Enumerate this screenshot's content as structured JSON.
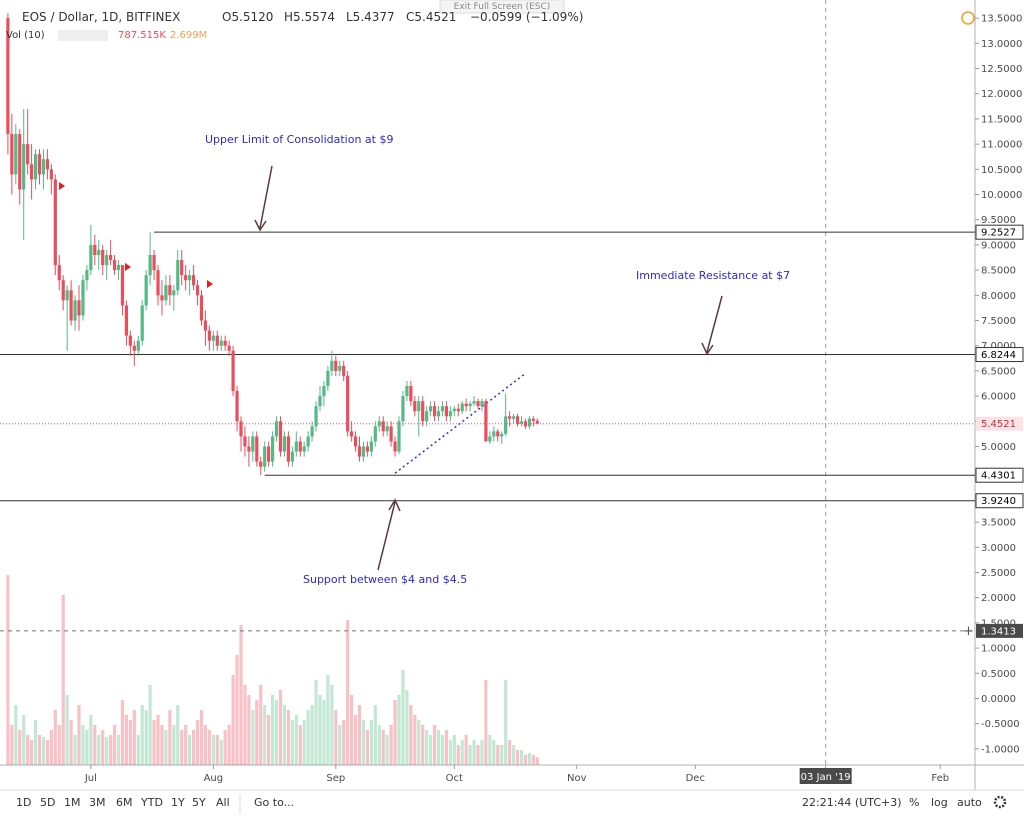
{
  "header": {
    "title": "EOS / Dollar, 1D, BITFINEX",
    "open": "O5.5120",
    "high": "H5.5574",
    "low": "L5.4377",
    "close": "C5.4521",
    "change": "−0.0599 (−1.09%)",
    "volume_title": "Vol (10)",
    "volume_value": "787.515K",
    "volume_ma": "2.699M",
    "exit_button": "Exit Full Screen (ESC)"
  },
  "toolbar": {
    "ranges": [
      "1D",
      "5D",
      "1M",
      "3M",
      "6M",
      "YTD",
      "1Y",
      "5Y",
      "All"
    ],
    "goto": "Go to...",
    "clock": "22:21:44 (UTC+3)",
    "percent": "%",
    "log": "log",
    "auto": "auto"
  },
  "chart_data": {
    "type": "candlestick",
    "xlim": [
      -2,
      244.8
    ],
    "xticks": [
      {
        "value": 21,
        "label": "Jul"
      },
      {
        "value": 52,
        "label": "Aug"
      },
      {
        "value": 83,
        "label": "Sep"
      },
      {
        "value": 113,
        "label": "Oct"
      },
      {
        "value": 144,
        "label": "Nov"
      },
      {
        "value": 174,
        "label": "Dec"
      },
      {
        "value": 207,
        "label": "03 Jan '19"
      },
      {
        "value": 236,
        "label": "Feb"
      }
    ],
    "ylim": [
      -1.32,
      13.86
    ],
    "yticks": [
      {
        "value": 13.5,
        "label": "13.5000"
      },
      {
        "value": 13,
        "label": "13.0000"
      },
      {
        "value": 12.5,
        "label": "12.5000"
      },
      {
        "value": 12,
        "label": "12.0000"
      },
      {
        "value": 11.5,
        "label": "11.5000"
      },
      {
        "value": 11,
        "label": "11.0000"
      },
      {
        "value": 10.5,
        "label": "10.5000"
      },
      {
        "value": 10,
        "label": "10.0000"
      },
      {
        "value": 9.5,
        "label": "9.5000"
      },
      {
        "value": 9,
        "label": "9.0000"
      },
      {
        "value": 8.5,
        "label": "8.5000"
      },
      {
        "value": 8,
        "label": "8.0000"
      },
      {
        "value": 7.5,
        "label": "7.5000"
      },
      {
        "value": 7,
        "label": "7.0000"
      },
      {
        "value": 6.5,
        "label": "6.5000"
      },
      {
        "value": 6,
        "label": "6.0000"
      },
      {
        "value": 5.5,
        "label": "5.5000"
      },
      {
        "value": 5,
        "label": "5.0000"
      },
      {
        "value": 4.5,
        "label": "4.5000"
      },
      {
        "value": 4,
        "label": "4.0000"
      },
      {
        "value": 3.5,
        "label": "3.5000"
      },
      {
        "value": 3,
        "label": "3.0000"
      },
      {
        "value": 2.5,
        "label": "2.5000"
      },
      {
        "value": 2,
        "label": "2.0000"
      },
      {
        "value": 1.5,
        "label": "1.5000"
      },
      {
        "value": 1,
        "label": "1.0000"
      },
      {
        "value": 0.5,
        "label": "0.5000"
      },
      {
        "value": 0,
        "label": "0.0000"
      },
      {
        "value": -0.5,
        "label": "-0.5000"
      },
      {
        "value": -1,
        "label": "-1.0000"
      }
    ],
    "up_color": "#53b987",
    "down_color": "#eb4d5c",
    "candles": [
      [
        13.5,
        13.6,
        10.8,
        11.2
      ],
      [
        11.2,
        11.6,
        10.0,
        10.4
      ],
      [
        10.4,
        11.4,
        10.2,
        11.2
      ],
      [
        11.2,
        11.3,
        9.8,
        10.1
      ],
      [
        10.1,
        11.7,
        9.1,
        11.0
      ],
      [
        11.0,
        11.7,
        10.4,
        10.6
      ],
      [
        10.6,
        11.0,
        9.9,
        10.3
      ],
      [
        10.3,
        10.9,
        10.1,
        10.8
      ],
      [
        10.8,
        10.9,
        10.2,
        10.4
      ],
      [
        10.4,
        10.9,
        10.1,
        10.7
      ],
      [
        10.7,
        10.9,
        10.3,
        10.5
      ],
      [
        10.5,
        10.6,
        10.0,
        10.3
      ],
      [
        10.3,
        10.4,
        8.4,
        8.6
      ],
      [
        8.6,
        8.8,
        8.1,
        8.3
      ],
      [
        8.3,
        8.4,
        7.7,
        7.9
      ],
      [
        7.9,
        8.2,
        6.9,
        8.1
      ],
      [
        8.1,
        8.3,
        7.4,
        7.5
      ],
      [
        7.5,
        8.0,
        7.3,
        7.9
      ],
      [
        7.9,
        8.2,
        7.3,
        7.6
      ],
      [
        7.6,
        8.4,
        7.5,
        8.3
      ],
      [
        8.3,
        8.6,
        8.1,
        8.5
      ],
      [
        8.5,
        9.4,
        8.4,
        9.0
      ],
      [
        9.0,
        9.2,
        8.6,
        8.8
      ],
      [
        8.8,
        9.1,
        8.5,
        8.9
      ],
      [
        8.9,
        9.0,
        8.4,
        8.6
      ],
      [
        8.6,
        8.9,
        8.3,
        8.8
      ],
      [
        8.8,
        9.1,
        8.6,
        8.7
      ],
      [
        8.7,
        8.8,
        8.4,
        8.5
      ],
      [
        8.5,
        8.7,
        8.3,
        8.6
      ],
      [
        8.6,
        8.6,
        7.6,
        7.8
      ],
      [
        7.8,
        7.9,
        7.0,
        7.2
      ],
      [
        7.2,
        7.3,
        6.8,
        7.0
      ],
      [
        7.0,
        7.1,
        6.6,
        6.9
      ],
      [
        6.9,
        7.2,
        6.8,
        7.1
      ],
      [
        7.1,
        7.9,
        7.0,
        7.8
      ],
      [
        7.8,
        8.5,
        7.7,
        8.4
      ],
      [
        8.4,
        9.25,
        8.2,
        8.8
      ],
      [
        8.8,
        8.9,
        8.3,
        8.5
      ],
      [
        8.5,
        8.6,
        7.8,
        8.0
      ],
      [
        8.0,
        8.3,
        7.6,
        7.9
      ],
      [
        7.9,
        8.4,
        7.8,
        8.2
      ],
      [
        8.2,
        8.4,
        7.8,
        8.0
      ],
      [
        8.0,
        8.2,
        7.7,
        8.1
      ],
      [
        8.1,
        8.9,
        8.0,
        8.7
      ],
      [
        8.7,
        8.9,
        8.2,
        8.4
      ],
      [
        8.4,
        8.6,
        8.1,
        8.3
      ],
      [
        8.3,
        8.5,
        8.0,
        8.4
      ],
      [
        8.4,
        8.6,
        8.1,
        8.2
      ],
      [
        8.2,
        8.3,
        7.8,
        8.0
      ],
      [
        8.0,
        8.1,
        7.4,
        7.5
      ],
      [
        7.5,
        7.7,
        7.0,
        7.3
      ],
      [
        7.3,
        7.4,
        6.9,
        7.1
      ],
      [
        7.1,
        7.3,
        6.9,
        7.2
      ],
      [
        7.2,
        7.3,
        6.9,
        7.0
      ],
      [
        7.0,
        7.2,
        6.9,
        7.1
      ],
      [
        7.1,
        7.2,
        6.9,
        7.0
      ],
      [
        7.0,
        7.1,
        6.8,
        6.9
      ],
      [
        6.9,
        7.0,
        6.0,
        6.1
      ],
      [
        6.1,
        6.2,
        5.3,
        5.5
      ],
      [
        5.5,
        5.6,
        4.9,
        5.2
      ],
      [
        5.2,
        5.4,
        4.8,
        5.0
      ],
      [
        5.0,
        5.2,
        4.6,
        4.9
      ],
      [
        4.9,
        5.3,
        4.7,
        5.2
      ],
      [
        5.2,
        5.3,
        4.6,
        4.7
      ],
      [
        4.7,
        4.8,
        4.43,
        4.6
      ],
      [
        4.6,
        5.1,
        4.5,
        5.0
      ],
      [
        5.0,
        5.1,
        4.6,
        4.7
      ],
      [
        4.7,
        5.3,
        4.6,
        5.2
      ],
      [
        5.2,
        5.6,
        5.1,
        5.5
      ],
      [
        5.5,
        5.6,
        4.8,
        4.9
      ],
      [
        4.9,
        5.3,
        4.8,
        5.2
      ],
      [
        5.2,
        5.3,
        4.6,
        4.7
      ],
      [
        4.7,
        5.0,
        4.6,
        4.9
      ],
      [
        4.9,
        5.3,
        4.8,
        5.1
      ],
      [
        5.1,
        5.2,
        4.8,
        4.9
      ],
      [
        4.9,
        5.1,
        4.8,
        5.0
      ],
      [
        5.0,
        5.3,
        4.9,
        5.2
      ],
      [
        5.2,
        5.5,
        5.1,
        5.4
      ],
      [
        5.4,
        5.9,
        5.3,
        5.8
      ],
      [
        5.8,
        6.2,
        5.7,
        6.0
      ],
      [
        6.0,
        6.3,
        5.8,
        6.2
      ],
      [
        6.2,
        6.6,
        6.1,
        6.5
      ],
      [
        6.5,
        6.9,
        6.4,
        6.7
      ],
      [
        6.7,
        6.8,
        6.4,
        6.5
      ],
      [
        6.5,
        6.7,
        6.4,
        6.6
      ],
      [
        6.6,
        6.7,
        6.3,
        6.4
      ],
      [
        6.4,
        6.5,
        5.2,
        5.3
      ],
      [
        5.3,
        5.5,
        5.1,
        5.2
      ],
      [
        5.2,
        5.3,
        4.9,
        5.0
      ],
      [
        5.0,
        5.2,
        4.7,
        4.8
      ],
      [
        4.8,
        5.1,
        4.7,
        5.0
      ],
      [
        5.0,
        5.1,
        4.8,
        4.9
      ],
      [
        4.9,
        5.2,
        4.8,
        5.1
      ],
      [
        5.1,
        5.5,
        5.0,
        5.4
      ],
      [
        5.4,
        5.6,
        5.3,
        5.5
      ],
      [
        5.5,
        5.6,
        5.2,
        5.3
      ],
      [
        5.3,
        5.5,
        5.2,
        5.4
      ],
      [
        5.4,
        5.5,
        5.0,
        5.1
      ],
      [
        5.1,
        5.2,
        4.8,
        4.9
      ],
      [
        4.9,
        5.6,
        4.85,
        5.5
      ],
      [
        5.5,
        6.1,
        5.4,
        6.0
      ],
      [
        6.0,
        6.3,
        5.9,
        6.2
      ],
      [
        6.2,
        6.3,
        5.8,
        5.9
      ],
      [
        5.9,
        6.0,
        5.6,
        5.7
      ],
      [
        5.7,
        6.0,
        5.2,
        5.9
      ],
      [
        5.9,
        6.0,
        5.4,
        5.5
      ],
      [
        5.5,
        5.8,
        5.4,
        5.7
      ],
      [
        5.7,
        5.9,
        5.6,
        5.8
      ],
      [
        5.8,
        5.9,
        5.5,
        5.6
      ],
      [
        5.6,
        5.8,
        5.5,
        5.7
      ],
      [
        5.7,
        5.9,
        5.6,
        5.8
      ],
      [
        5.8,
        5.9,
        5.5,
        5.6
      ],
      [
        5.6,
        5.8,
        5.5,
        5.7
      ],
      [
        5.7,
        5.8,
        5.6,
        5.75
      ],
      [
        5.75,
        5.85,
        5.6,
        5.7
      ],
      [
        5.7,
        5.9,
        5.65,
        5.85
      ],
      [
        5.85,
        5.95,
        5.7,
        5.8
      ],
      [
        5.8,
        5.9,
        5.7,
        5.85
      ],
      [
        5.85,
        6.0,
        5.8,
        5.9
      ],
      [
        5.9,
        5.95,
        5.75,
        5.8
      ],
      [
        5.8,
        5.95,
        5.7,
        5.9
      ],
      [
        5.9,
        5.95,
        5.1,
        5.1
      ],
      [
        5.1,
        5.3,
        5.05,
        5.2
      ],
      [
        5.2,
        5.4,
        5.1,
        5.3
      ],
      [
        5.3,
        5.35,
        5.1,
        5.2
      ],
      [
        5.2,
        5.3,
        5.05,
        5.25
      ],
      [
        5.25,
        6.05,
        5.2,
        5.6
      ],
      [
        5.6,
        5.7,
        5.4,
        5.55
      ],
      [
        5.55,
        5.65,
        5.45,
        5.6
      ],
      [
        5.6,
        5.65,
        5.4,
        5.45
      ],
      [
        5.45,
        5.6,
        5.4,
        5.5
      ],
      [
        5.5,
        5.55,
        5.35,
        5.4
      ],
      [
        5.4,
        5.6,
        5.35,
        5.55
      ],
      [
        5.55,
        5.6,
        5.4,
        5.51
      ],
      [
        5.512,
        5.5574,
        5.4377,
        5.4521
      ]
    ],
    "volume": [
      19000,
      4000,
      6000,
      3500,
      5000,
      3000,
      2500,
      4500,
      3000,
      2800,
      2500,
      3500,
      5500,
      4000,
      17000,
      7000,
      4500,
      3000,
      6000,
      4000,
      3500,
      5000,
      4000,
      3000,
      3500,
      2800,
      3000,
      4000,
      3000,
      6500,
      5000,
      4500,
      5500,
      3000,
      6000,
      5500,
      8000,
      4500,
      5000,
      4000,
      3500,
      5500,
      4000,
      6000,
      3500,
      4000,
      3000,
      3500,
      4500,
      5500,
      4000,
      3500,
      3000,
      3000,
      2500,
      3500,
      4000,
      9000,
      11000,
      14000,
      8000,
      7000,
      5500,
      6500,
      8000,
      6000,
      5000,
      7000,
      6500,
      7500,
      6000,
      5500,
      4500,
      5000,
      4000,
      4500,
      5500,
      6000,
      8500,
      7000,
      6500,
      9000,
      8000,
      5500,
      4000,
      4500,
      14500,
      7000,
      5000,
      6000,
      4500,
      3500,
      4500,
      6000,
      4000,
      3500,
      3000,
      4000,
      6500,
      7000,
      9500,
      7500,
      6000,
      5000,
      4500,
      4000,
      3500,
      3000,
      4000,
      3500,
      3000,
      3500,
      2500,
      3000,
      2000,
      2500,
      3000,
      2000,
      2500,
      2000,
      2500,
      8500,
      3000,
      2500,
      2000,
      2000,
      8500,
      2500,
      2000,
      1500,
      1500,
      1000,
      1200,
      1000,
      787.515
    ],
    "levels": [
      9.2527,
      6.8244,
      4.4301,
      {
        "value": 3.924,
        "label": "3.9240"
      }
    ],
    "last_price": 5.4521,
    "crosshair": 1.3413,
    "trendline": {
      "x": [
        98,
        131
      ],
      "y": [
        4.47,
        6.45
      ]
    },
    "annotations": [
      "Upper Limit of Consolidation at $9",
      "Immediate Resistance at $7",
      "Support between $4 and $4.5"
    ]
  }
}
